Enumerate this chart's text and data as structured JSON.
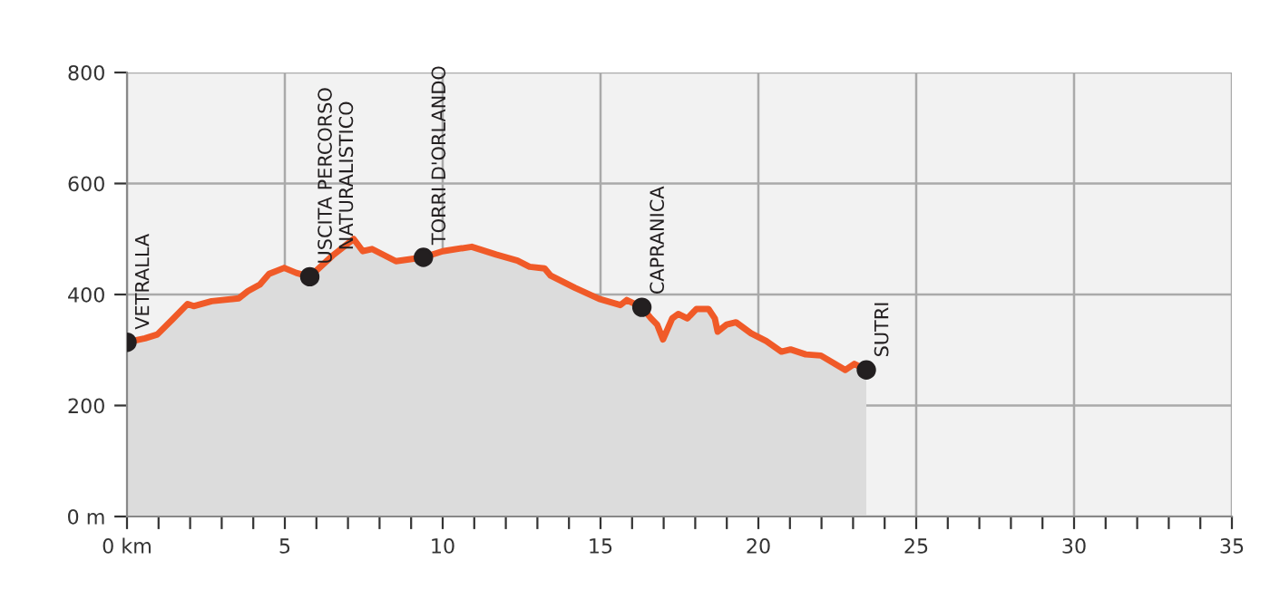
{
  "chart_data": {
    "type": "area",
    "x": [
      0,
      0.57,
      0.96,
      1.44,
      1.92,
      2.11,
      2.68,
      3.54,
      3.83,
      4.21,
      4.5,
      4.98,
      5.36,
      5.79,
      6.13,
      6.51,
      7.18,
      7.47,
      7.76,
      8.52,
      9.39,
      10,
      10.92,
      11.69,
      12.37,
      12.75,
      13.23,
      13.42,
      14.19,
      14.96,
      15.63,
      15.83,
      16.31,
      16.6,
      16.79,
      16.98,
      17.27,
      17.46,
      17.75,
      18.04,
      18.42,
      18.62,
      18.71,
      19.0,
      19.29,
      19.77,
      20.25,
      20.73,
      21.02,
      21.5,
      21.98,
      22.75,
      23.04,
      23.42
    ],
    "series": [
      {
        "color": "#f05a28",
        "values": [
          314,
          321,
          328,
          355,
          383,
          379,
          388,
          393,
          406,
          418,
          437,
          448,
          439,
          432,
          450,
          470,
          500,
          478,
          482,
          460,
          467,
          478,
          486,
          472,
          461,
          450,
          447,
          434,
          412,
          392,
          381,
          390,
          377,
          357,
          346,
          319,
          357,
          365,
          357,
          374,
          374,
          357,
          333,
          346,
          350,
          330,
          316,
          297,
          301,
          292,
          290,
          264,
          275,
          264
        ]
      },
      {
        "type": "scatter",
        "marker": "circle",
        "color": "#231f20",
        "x": [
          0,
          5.79,
          9.39,
          16.31,
          23.42
        ],
        "values": [
          314,
          432,
          467,
          377,
          264
        ]
      }
    ],
    "annotations": [
      {
        "text": "VETRALLA",
        "x": 0,
        "y": 314
      },
      {
        "text": "USCITA PERCORSO\nNATURALISTICO",
        "x": 5.79,
        "y": 432
      },
      {
        "text": "TORRI D'ORLANDO",
        "x": 9.39,
        "y": 467
      },
      {
        "text": "CAPRANICA",
        "x": 16.31,
        "y": 377
      },
      {
        "text": "SUTRI",
        "x": 23.42,
        "y": 264
      }
    ],
    "xlim": [
      0,
      35
    ],
    "ylim": [
      0,
      800
    ],
    "xticks": [
      {
        "value": 0,
        "label": "0 km"
      },
      {
        "value": 1,
        "label": null
      },
      {
        "value": 2,
        "label": null
      },
      {
        "value": 3,
        "label": null
      },
      {
        "value": 4,
        "label": null
      },
      5,
      {
        "value": 6,
        "label": null
      },
      {
        "value": 7,
        "label": null
      },
      {
        "value": 8,
        "label": null
      },
      {
        "value": 9,
        "label": null
      },
      10,
      {
        "value": 11,
        "label": null
      },
      {
        "value": 12,
        "label": null
      },
      {
        "value": 13,
        "label": null
      },
      {
        "value": 14,
        "label": null
      },
      15,
      {
        "value": 16,
        "label": null
      },
      {
        "value": 17,
        "label": null
      },
      {
        "value": 18,
        "label": null
      },
      {
        "value": 19,
        "label": null
      },
      20,
      {
        "value": 21,
        "label": null
      },
      {
        "value": 22,
        "label": null
      },
      {
        "value": 23,
        "label": null
      },
      {
        "value": 24,
        "label": null
      },
      25,
      {
        "value": 26,
        "label": null
      },
      {
        "value": 27,
        "label": null
      },
      {
        "value": 28,
        "label": null
      },
      {
        "value": 29,
        "label": null
      },
      30,
      {
        "value": 31,
        "label": null
      },
      {
        "value": 32,
        "label": null
      },
      {
        "value": 33,
        "label": null
      },
      {
        "value": 34,
        "label": null
      },
      35
    ],
    "yticks": [
      {
        "value": 0,
        "label": "0 m"
      },
      200,
      400,
      600,
      800
    ],
    "grid": true,
    "line_style": "solid"
  }
}
